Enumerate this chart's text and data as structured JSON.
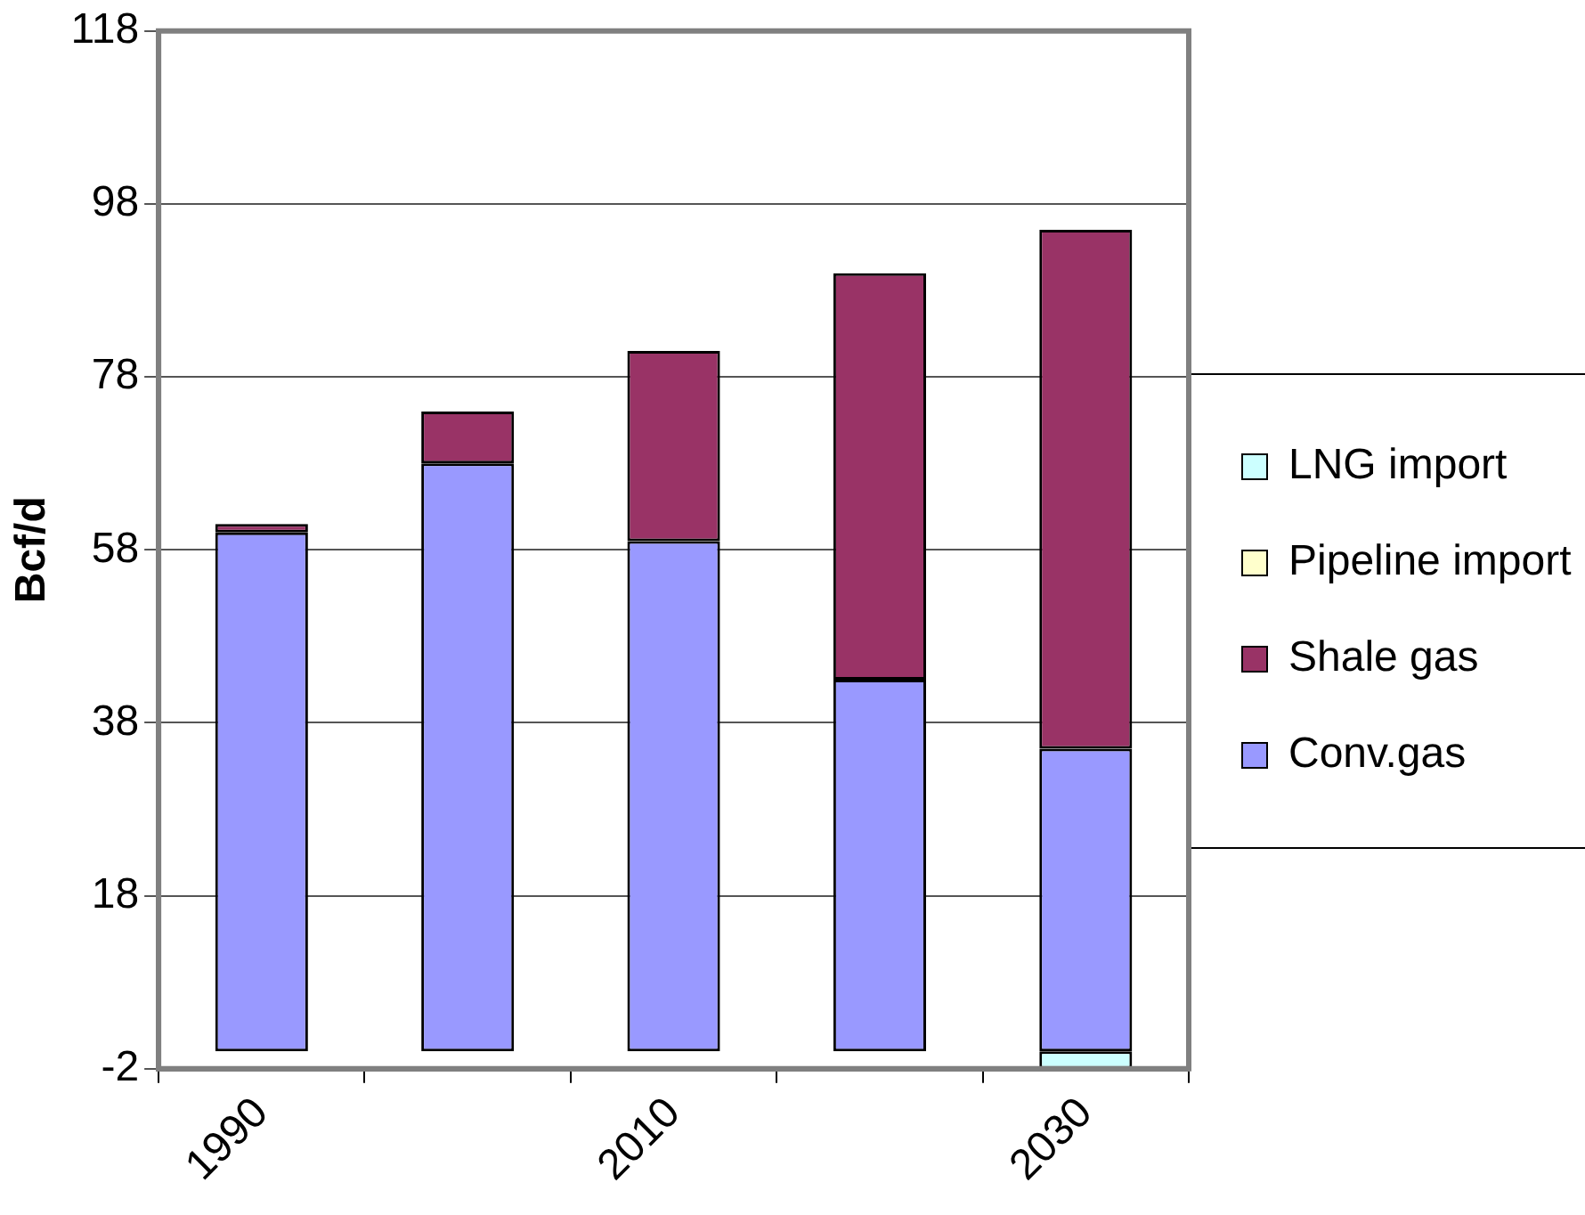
{
  "chart_data": {
    "type": "bar",
    "stacked": true,
    "ylabel": "Bcf/d",
    "categories": [
      "1990",
      null,
      "2010",
      null,
      "2030"
    ],
    "series": [
      {
        "name": "Conv.gas",
        "color": "#9999ff",
        "values": [
          60,
          68,
          59,
          43,
          35
        ]
      },
      {
        "name": "Shale gas",
        "color": "#993366",
        "values": [
          1,
          6,
          22,
          47,
          60
        ]
      },
      {
        "name": "Pipeline import",
        "color": "#ffffcc",
        "values": [
          0,
          0,
          0,
          0,
          0
        ]
      },
      {
        "name": "LNG import",
        "color": "#ccffff",
        "values": [
          0,
          0,
          0,
          0,
          -2
        ]
      }
    ],
    "ylim": [
      -2,
      118
    ],
    "yticks": [
      -2,
      18,
      38,
      58,
      78,
      98,
      118
    ],
    "grid": "y",
    "legend": "right"
  }
}
